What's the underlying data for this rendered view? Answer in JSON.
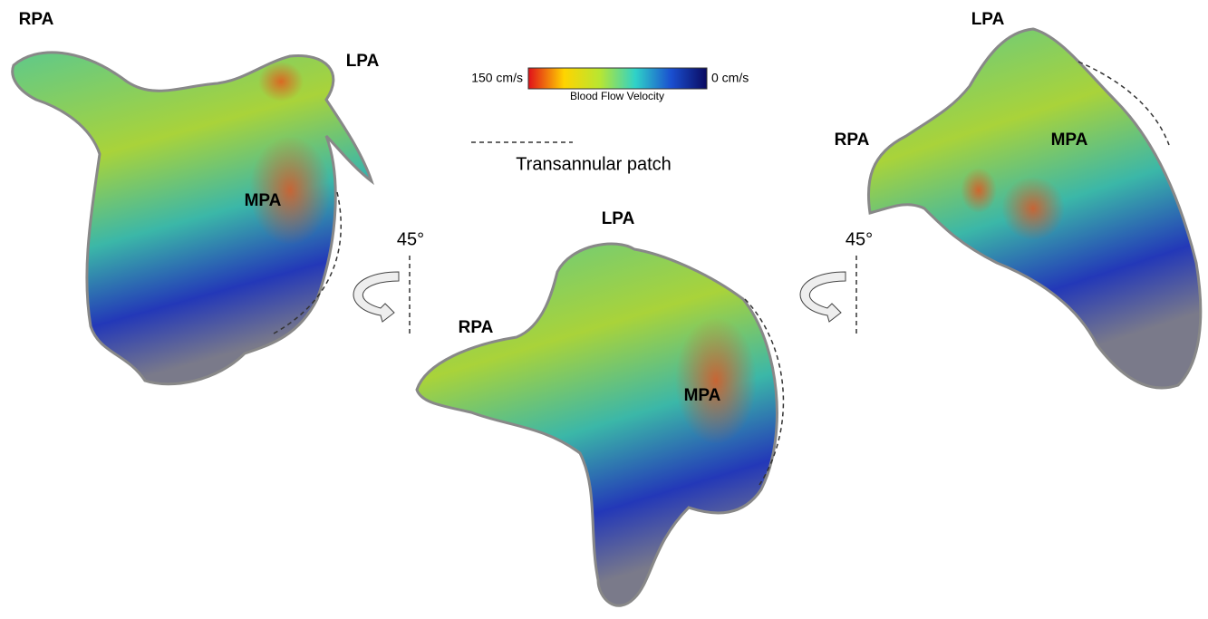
{
  "colorbar": {
    "max_label": "150 cm/s",
    "min_label": "0 cm/s",
    "title": "Blood Flow Velocity"
  },
  "legend": {
    "label": "Transannular patch"
  },
  "rotations": [
    "45°",
    "45°"
  ],
  "views": [
    {
      "labels": [
        "RPA",
        "LPA",
        "MPA"
      ]
    },
    {
      "labels": [
        "LPA",
        "RPA",
        "MPA"
      ]
    },
    {
      "labels": [
        "LPA",
        "RPA",
        "MPA"
      ]
    }
  ]
}
